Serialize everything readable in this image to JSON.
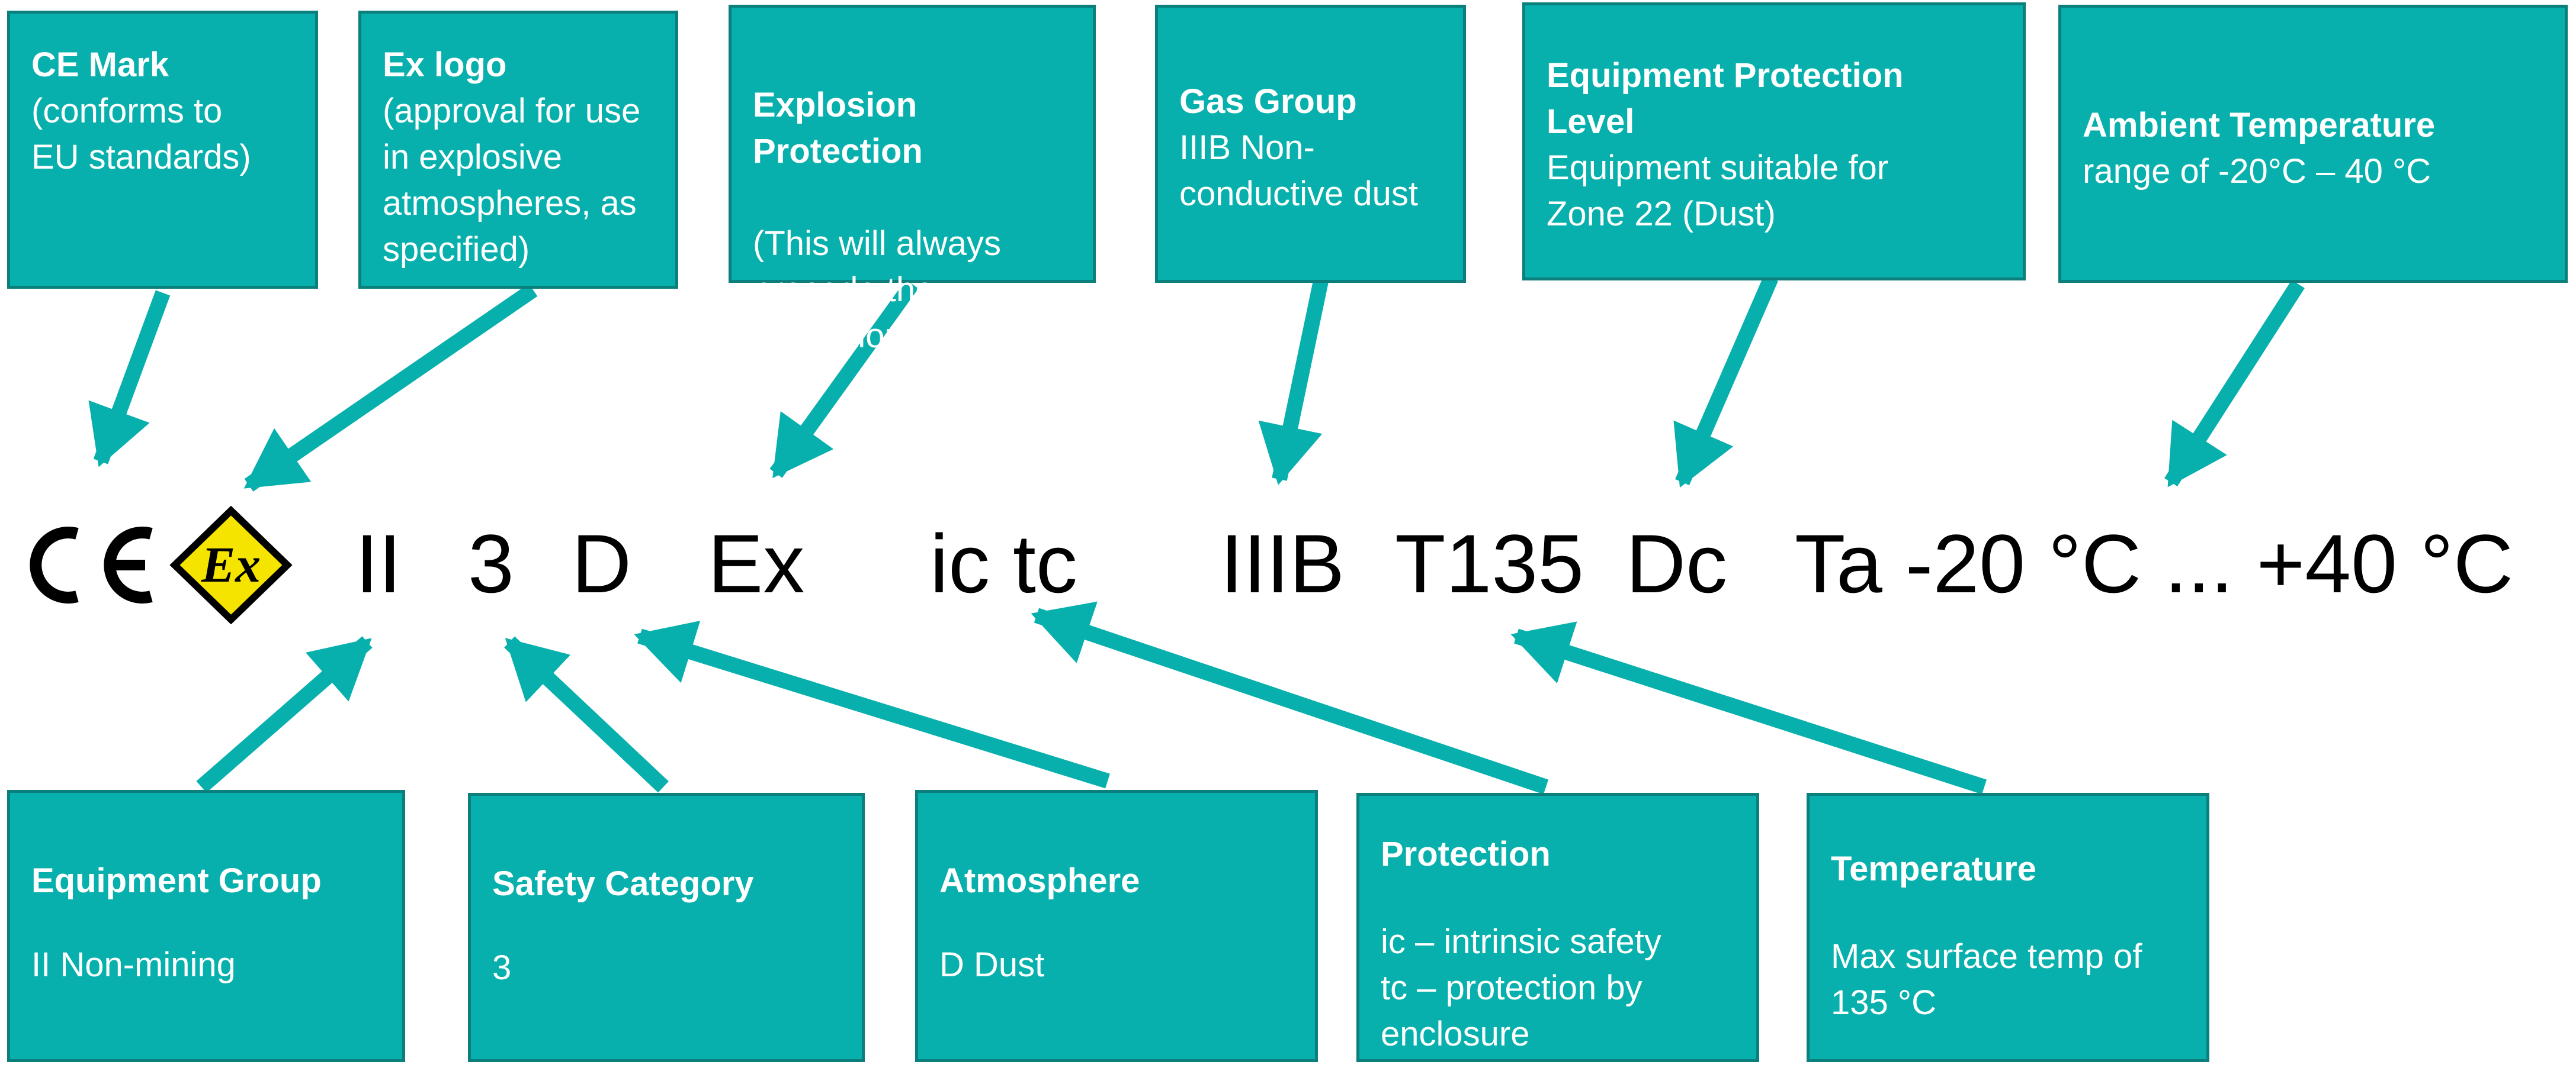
{
  "top_boxes": [
    {
      "title": "CE Mark",
      "body": "(conforms to\nEU standards)"
    },
    {
      "title": "Ex logo",
      "body": "(approval for use\nin explosive\natmospheres, as\nspecified)"
    },
    {
      "title": "Explosion\nProtection",
      "body": "(This will always\nprecede the\nprotection category)"
    },
    {
      "title": "Gas Group",
      "body": "IIIB Non-\nconductive dust"
    },
    {
      "title": "Equipment Protection\nLevel",
      "body": "Equipment suitable for\nZone 22 (Dust)"
    },
    {
      "title": "Ambient Temperature",
      "body": "range of -20°C – 40 °C"
    }
  ],
  "bottom_boxes": [
    {
      "title": "Equipment Group",
      "body": "II Non-mining"
    },
    {
      "title": "Safety Category",
      "body": "3"
    },
    {
      "title": "Atmosphere",
      "body": "D Dust"
    },
    {
      "title": "Protection",
      "body": "ic – intrinsic safety\ntc – protection by\nenclosure"
    },
    {
      "title": "Temperature",
      "body": "Max surface temp of\n135 °C"
    }
  ],
  "marking": {
    "ce": "CE",
    "ex": "Ex",
    "group": "II",
    "category": "3",
    "atmosphere": "D",
    "explosion": "Ex",
    "protection": "ic tc",
    "gas_group": "IIIB",
    "temp_class": "T135",
    "epl": "Dc",
    "ambient": "Ta -20 °C ... +40 °C"
  },
  "colors": {
    "box_fill": "#07b0ac",
    "box_border": "#0b7f7c",
    "arrow": "#07b0ac",
    "ex_yellow": "#f5e400"
  }
}
